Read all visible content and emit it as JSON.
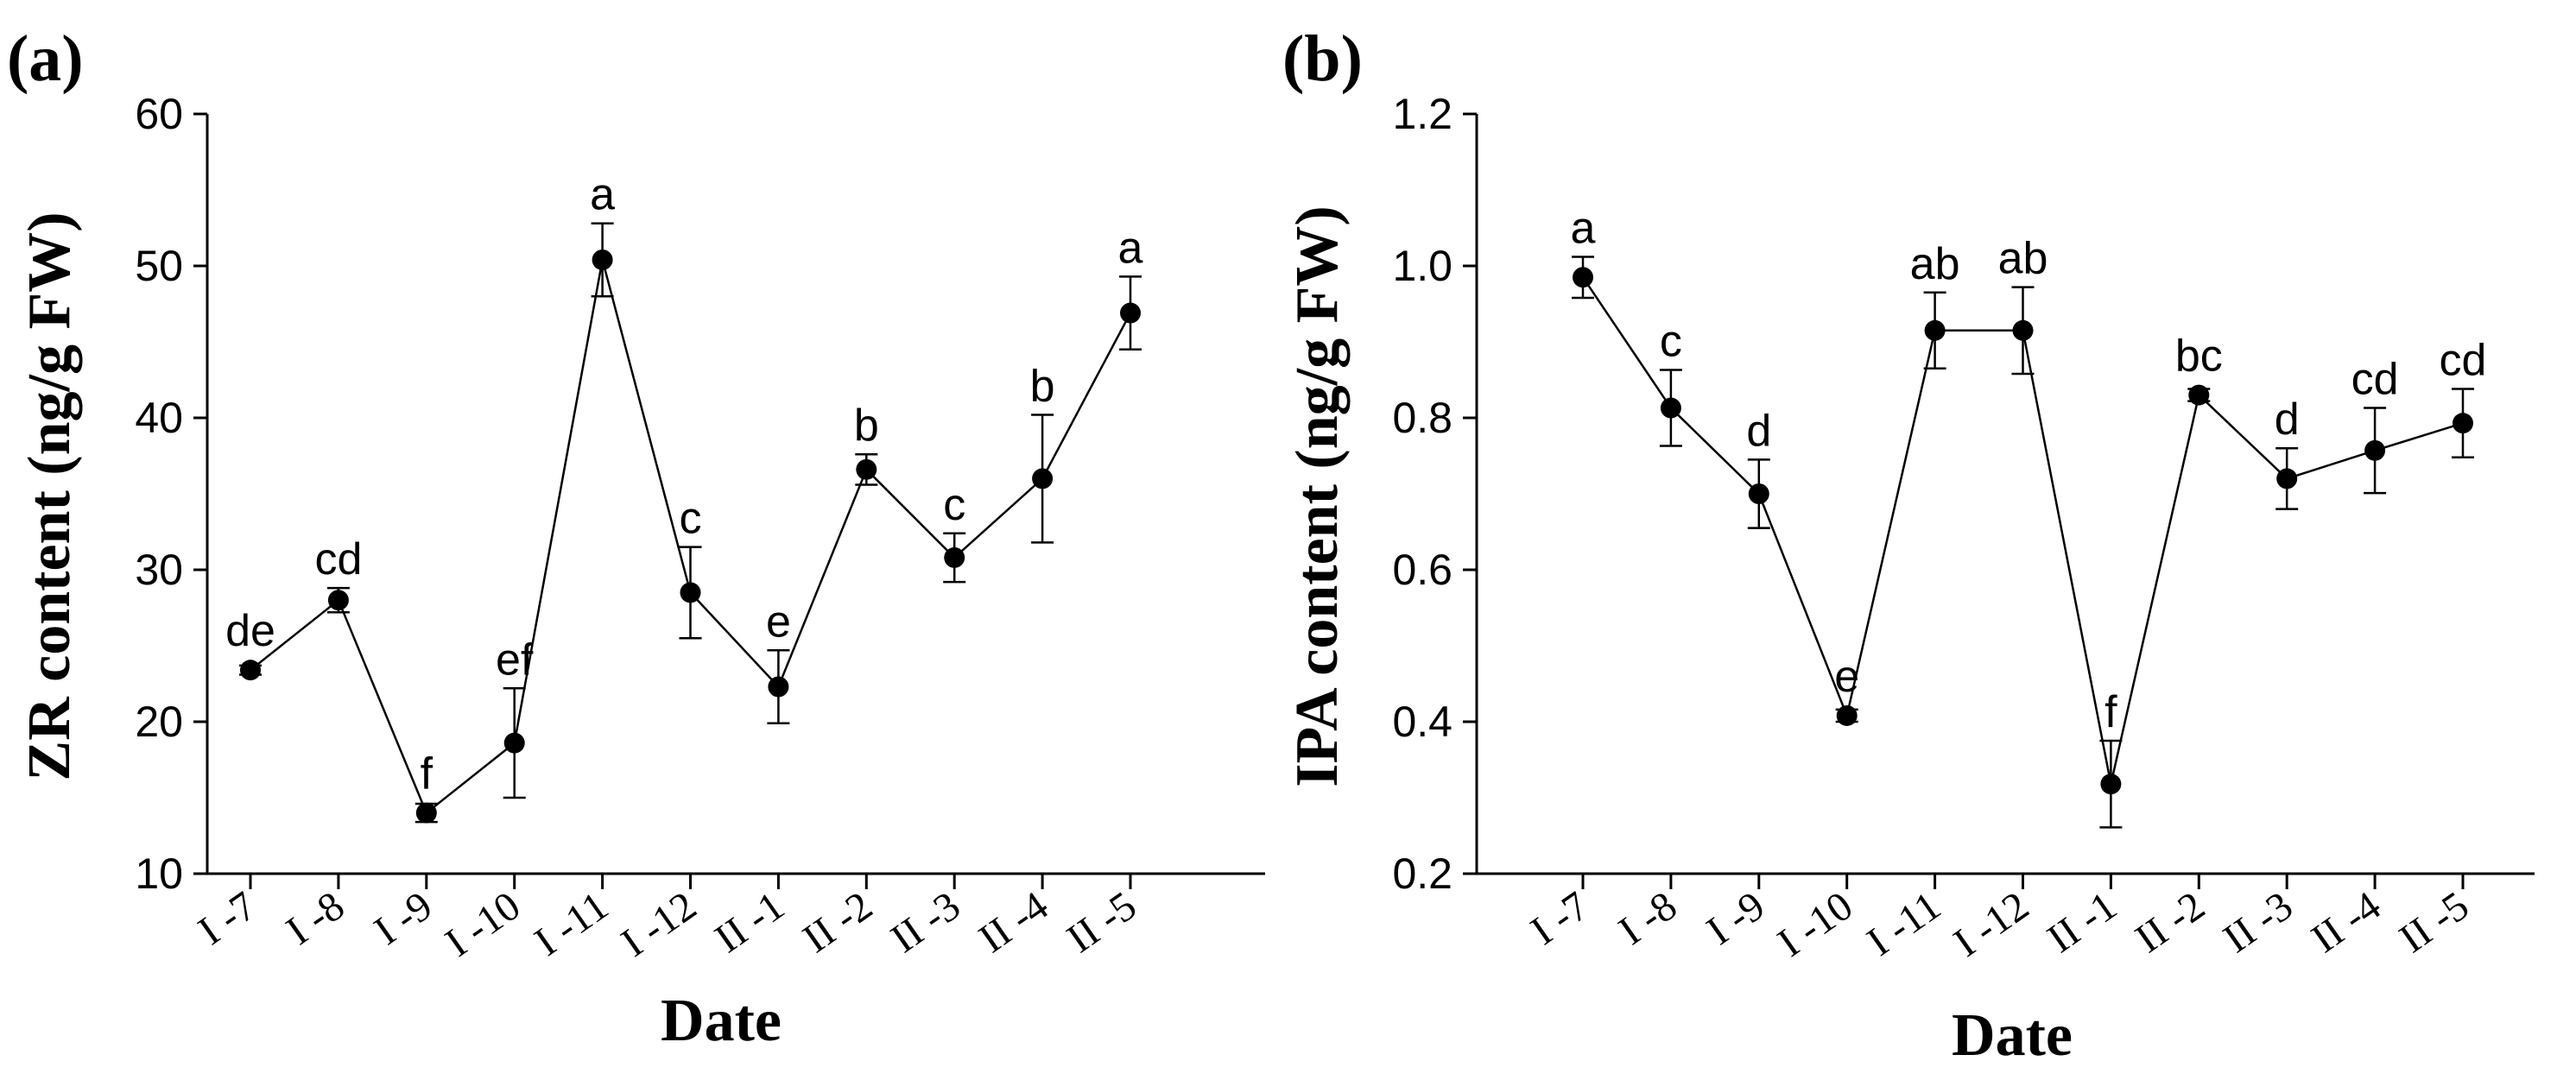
{
  "chart_data": [
    {
      "type": "line",
      "panel_label": "(a)",
      "xlabel": "Date",
      "ylabel": "ZR content (ng/g FW)",
      "categories": [
        "I -7",
        "I -8",
        "I -9",
        "I -10",
        "I -11",
        "I -12",
        "II -1",
        "II -2",
        "II -3",
        "II -4",
        "II -5"
      ],
      "values": [
        23.4,
        28.0,
        14.0,
        18.6,
        50.4,
        28.5,
        22.3,
        36.6,
        30.8,
        36.0,
        46.9
      ],
      "errors": [
        0.3,
        0.8,
        0.6,
        3.6,
        2.4,
        3.0,
        2.4,
        1.0,
        1.6,
        4.2,
        2.4
      ],
      "significance": [
        "de",
        "cd",
        "f",
        "ef",
        "a",
        "c",
        "e",
        "b",
        "c",
        "b",
        "a"
      ],
      "ylim": [
        10,
        60
      ],
      "yticks": [
        "10",
        "20",
        "30",
        "40",
        "50",
        "60"
      ],
      "grid": false
    },
    {
      "type": "line",
      "panel_label": "(b)",
      "xlabel": "Date",
      "ylabel": "IPA content (ng/g FW)",
      "categories": [
        "I -7",
        "I -8",
        "I -9",
        "I -10",
        "I -11",
        "I -12",
        "II -1",
        "II -2",
        "II -3",
        "II -4",
        "II -5"
      ],
      "values": [
        0.985,
        0.813,
        0.7,
        0.408,
        0.915,
        0.915,
        0.318,
        0.83,
        0.72,
        0.757,
        0.793
      ],
      "errors": [
        0.027,
        0.05,
        0.045,
        0.008,
        0.05,
        0.057,
        0.057,
        0.008,
        0.04,
        0.056,
        0.045
      ],
      "significance": [
        "a",
        "c",
        "d",
        "e",
        "ab",
        "ab",
        "f",
        "bc",
        "d",
        "cd",
        "cd"
      ],
      "ylim": [
        0.2,
        1.2
      ],
      "yticks": [
        "0.2",
        "0.4",
        "0.6",
        "0.8",
        "1.0",
        "1.2"
      ],
      "grid": false
    }
  ]
}
